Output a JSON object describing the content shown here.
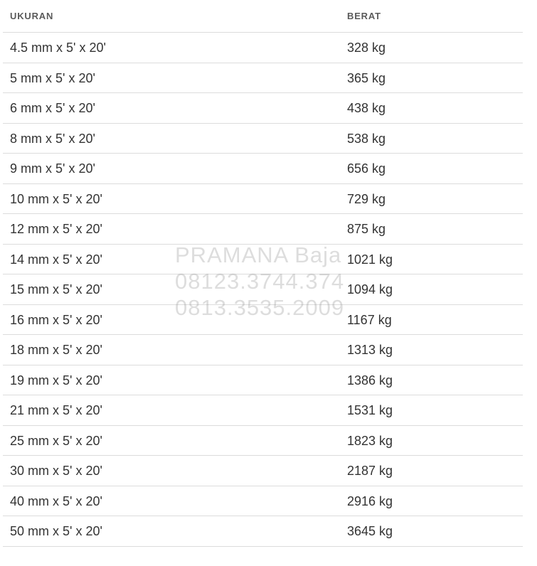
{
  "table": {
    "headers": {
      "size": "UKURAN",
      "weight": "BERAT"
    },
    "rows": [
      {
        "size": "4.5 mm x 5' x 20'",
        "weight": "328 kg"
      },
      {
        "size": "5 mm x 5' x 20'",
        "weight": "365 kg"
      },
      {
        "size": "6 mm x 5' x 20'",
        "weight": "438 kg"
      },
      {
        "size": "8 mm x 5' x 20'",
        "weight": "538 kg"
      },
      {
        "size": "9 mm x 5' x 20'",
        "weight": "656 kg"
      },
      {
        "size": "10 mm x 5' x 20'",
        "weight": "729 kg"
      },
      {
        "size": "12 mm x 5' x 20'",
        "weight": "875 kg"
      },
      {
        "size": "14 mm x 5' x 20'",
        "weight": "1021 kg"
      },
      {
        "size": "15 mm x 5' x 20'",
        "weight": "1094 kg"
      },
      {
        "size": "16 mm x 5' x 20'",
        "weight": "1167 kg"
      },
      {
        "size": "18 mm x 5' x 20'",
        "weight": "1313 kg"
      },
      {
        "size": "19 mm x 5' x 20'",
        "weight": "1386 kg"
      },
      {
        "size": "21 mm x 5' x 20'",
        "weight": "1531 kg"
      },
      {
        "size": "25 mm x 5' x 20'",
        "weight": "1823 kg"
      },
      {
        "size": "30 mm x 5' x 20'",
        "weight": "2187 kg"
      },
      {
        "size": "40 mm x 5' x 20'",
        "weight": "2916 kg"
      },
      {
        "size": "50 mm x 5' x 20'",
        "weight": "3645 kg"
      }
    ]
  },
  "watermark": {
    "line1": "PRAMANA Baja",
    "line2": "08123.3744.374",
    "line3": "0813.3535.2009"
  }
}
